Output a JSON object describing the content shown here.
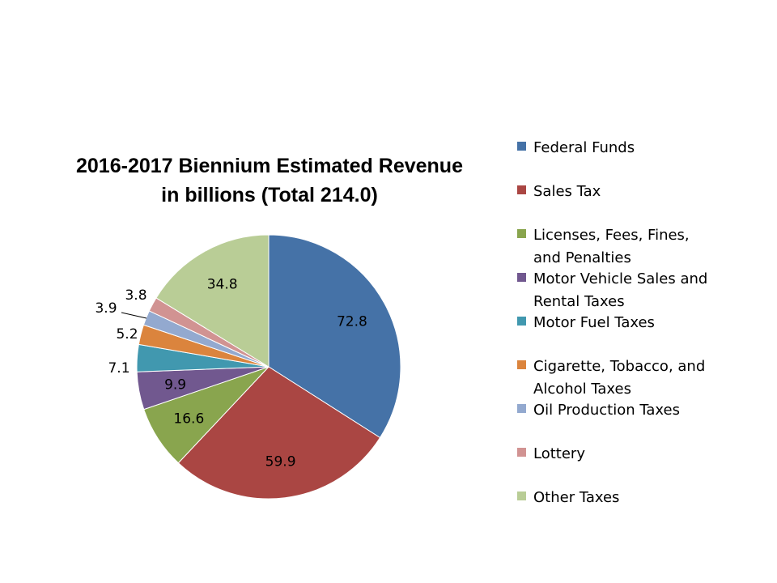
{
  "chart_data": {
    "type": "pie",
    "title_lines": [
      "2016-2017 Biennium Estimated Revenue",
      "in billions (Total 214.0)"
    ],
    "legend_position": "right",
    "slices": [
      {
        "label": "Federal Funds",
        "legend_lines": [
          "Federal Funds"
        ],
        "value": 72.8,
        "display": "72.8",
        "color": "#4572A7"
      },
      {
        "label": "Sales Tax",
        "legend_lines": [
          "Sales Tax"
        ],
        "value": 59.9,
        "display": "59.9",
        "color": "#AA4643"
      },
      {
        "label": "Licenses, Fees, Fines, and Penalties",
        "legend_lines": [
          "Licenses, Fees, Fines,",
          "and Penalties"
        ],
        "value": 16.6,
        "display": "16.6",
        "color": "#89A54E"
      },
      {
        "label": "Motor Vehicle Sales and Rental Taxes",
        "legend_lines": [
          "Motor Vehicle Sales and",
          "Rental Taxes"
        ],
        "value": 9.9,
        "display": "9.9",
        "color": "#71588F"
      },
      {
        "label": "Motor Fuel Taxes",
        "legend_lines": [
          "Motor Fuel Taxes"
        ],
        "value": 7.1,
        "display": "7.1",
        "color": "#4198AF"
      },
      {
        "label": "Cigarette, Tobacco, and Alcohol Taxes",
        "legend_lines": [
          "Cigarette, Tobacco, and",
          "Alcohol Taxes"
        ],
        "value": 5.2,
        "display": "5.2",
        "color": "#DB843D"
      },
      {
        "label": "Oil Production Taxes",
        "legend_lines": [
          "Oil Production Taxes"
        ],
        "value": 3.9,
        "display": "3.9",
        "color": "#93A9CF"
      },
      {
        "label": "Lottery",
        "legend_lines": [
          "Lottery"
        ],
        "value": 3.8,
        "display": "3.8",
        "color": "#D19392"
      },
      {
        "label": "Other Taxes",
        "legend_lines": [
          "Other Taxes"
        ],
        "value": 34.8,
        "display": "34.8",
        "color": "#B9CD96"
      }
    ]
  }
}
